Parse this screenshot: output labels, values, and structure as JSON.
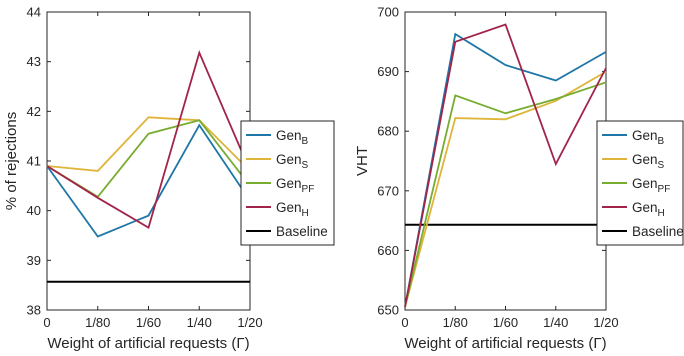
{
  "chart_data": [
    {
      "type": "line",
      "ylabel": "% of rejections",
      "xlabel": "Weight of artificial requests (Γ)",
      "ylim": [
        38,
        44
      ],
      "yticks": [
        "38",
        "39",
        "40",
        "41",
        "42",
        "43",
        "44"
      ],
      "x_categories": [
        "0",
        "1/80",
        "1/60",
        "1/40",
        "1/20"
      ],
      "grid": false,
      "legend_position": "right",
      "series": [
        {
          "name": "Gen",
          "sub": "B",
          "color": "#1f77a8",
          "values": [
            40.9,
            39.48,
            39.9,
            41.72,
            40.2
          ]
        },
        {
          "name": "Gen",
          "sub": "S",
          "color": "#e0b43a",
          "values": [
            40.9,
            40.8,
            41.88,
            41.82,
            40.8
          ]
        },
        {
          "name": "Gen",
          "sub": "PF",
          "color": "#77ac30",
          "values": [
            40.9,
            40.28,
            41.55,
            41.82,
            40.5
          ]
        },
        {
          "name": "Gen",
          "sub": "H",
          "color": "#a2244a",
          "values": [
            40.9,
            40.26,
            39.66,
            43.18,
            40.8
          ]
        }
      ],
      "baseline": {
        "name": "Baseline",
        "color": "#000000",
        "value": 38.57
      }
    },
    {
      "type": "line",
      "ylabel": "VHT",
      "xlabel": "Weight of artificial requests (Γ)",
      "ylim": [
        650,
        700
      ],
      "yticks": [
        "650",
        "660",
        "670",
        "680",
        "690",
        "700"
      ],
      "x_categories": [
        "0",
        "1/80",
        "1/60",
        "1/40",
        "1/20"
      ],
      "grid": false,
      "legend_position": "right",
      "series": [
        {
          "name": "Gen",
          "sub": "B",
          "color": "#1f77a8",
          "values": [
            650.5,
            696.3,
            691.1,
            688.5,
            693.3
          ]
        },
        {
          "name": "Gen",
          "sub": "S",
          "color": "#e0b43a",
          "values": [
            650.5,
            682.2,
            682.0,
            685.1,
            690.0
          ]
        },
        {
          "name": "Gen",
          "sub": "PF",
          "color": "#77ac30",
          "values": [
            650.5,
            686.0,
            683.0,
            685.4,
            688.2
          ]
        },
        {
          "name": "Gen",
          "sub": "H",
          "color": "#a2244a",
          "values": [
            650.5,
            695.0,
            697.9,
            674.5,
            690.6
          ]
        }
      ],
      "baseline": {
        "name": "Baseline",
        "color": "#000000",
        "value": 664.3
      }
    }
  ]
}
